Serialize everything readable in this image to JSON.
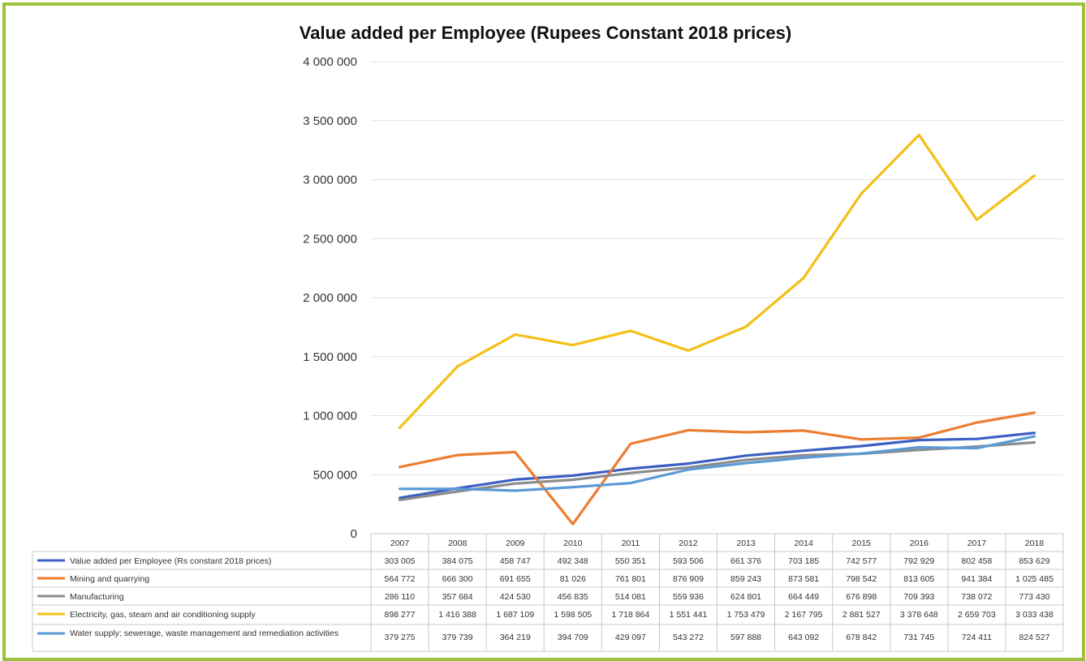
{
  "chart_data": {
    "type": "line",
    "title": "Value added per Employee (Rupees Constant 2018 prices)",
    "categories": [
      "2007",
      "2008",
      "2009",
      "2010",
      "2011",
      "2012",
      "2013",
      "2014",
      "2015",
      "2016",
      "2017",
      "2018"
    ],
    "ylim": [
      0,
      4000000
    ],
    "yticks": [
      0,
      500000,
      1000000,
      1500000,
      2000000,
      2500000,
      3000000,
      3500000,
      4000000
    ],
    "ytick_labels": [
      "0",
      "500 000",
      "1 000 000",
      "1 500 000",
      "2 000 000",
      "2 500 000",
      "3 000 000",
      "3 500 000",
      "4 000 000"
    ],
    "grid": true,
    "legend": "data-table-bottom",
    "series": [
      {
        "name": "Value added per Employee (Rs constant 2018 prices)",
        "color": "#3b5fc4",
        "values": [
          303005,
          384075,
          458747,
          492348,
          550351,
          593506,
          661376,
          703185,
          742577,
          792929,
          802458,
          853629
        ],
        "labels": [
          "303 005",
          "384 075",
          "458 747",
          "492 348",
          "550 351",
          "593 506",
          "661 376",
          "703 185",
          "742 577",
          "792 929",
          "802 458",
          "853 629"
        ]
      },
      {
        "name": "Mining and quarrying",
        "color": "#ed7d31",
        "values": [
          564772,
          666300,
          691655,
          81026,
          761801,
          876909,
          859243,
          873581,
          798542,
          813605,
          941384,
          1025485
        ],
        "labels": [
          "564 772",
          "666 300",
          "691 655",
          "81 026",
          "761 801",
          "876 909",
          "859 243",
          "873 581",
          "798 542",
          "813 605",
          "941 384",
          "1 025 485"
        ]
      },
      {
        "name": "Manufacturing",
        "color": "#8c8c8c",
        "values": [
          286110,
          357684,
          424530,
          456835,
          514081,
          559936,
          624801,
          664449,
          676898,
          709393,
          738072,
          773430
        ],
        "labels": [
          "286 110",
          "357 684",
          "424 530",
          "456 835",
          "514 081",
          "559 936",
          "624 801",
          "664 449",
          "676 898",
          "709 393",
          "738 072",
          "773 430"
        ]
      },
      {
        "name": "Electricity, gas, steam and air conditioning supply",
        "color": "#f2c017",
        "values": [
          898277,
          1416388,
          1687109,
          1598505,
          1718864,
          1551441,
          1753479,
          2167795,
          2881527,
          3378648,
          2659703,
          3033438
        ],
        "labels": [
          "898 277",
          "1 416 388",
          "1 687 109",
          "1 598 505",
          "1 718 864",
          "1 551 441",
          "1 753 479",
          "2 167 795",
          "2 881 527",
          "3 378 648",
          "2 659 703",
          "3 033 438"
        ]
      },
      {
        "name": "Water supply; sewerage, waste management and remediation activities",
        "color": "#5b9bd5",
        "values": [
          379275,
          379739,
          364219,
          394709,
          429097,
          543272,
          597888,
          643092,
          678842,
          731745,
          724411,
          824527
        ],
        "labels": [
          "379 275",
          "379 739",
          "364 219",
          "394 709",
          "429 097",
          "543 272",
          "597 888",
          "643 092",
          "678 842",
          "731 745",
          "724 411",
          "824 527"
        ]
      }
    ]
  }
}
